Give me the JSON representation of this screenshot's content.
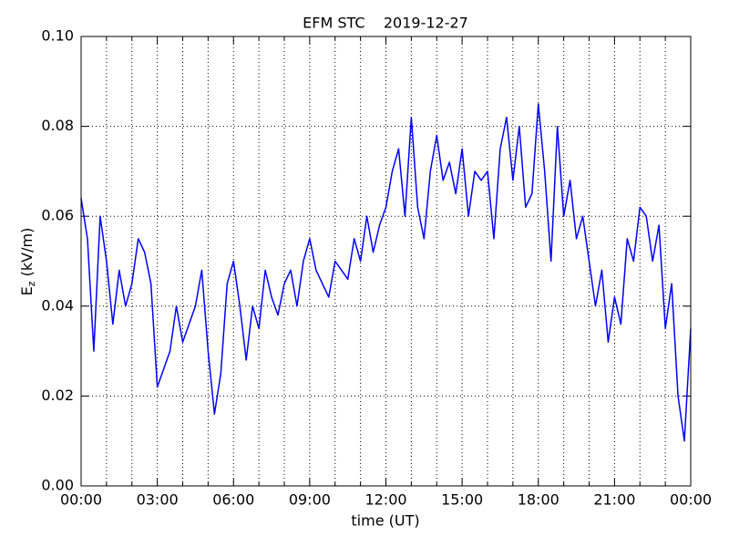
{
  "chart_data": {
    "type": "line",
    "title": "EFM STC    2019-12-27",
    "xlabel": "time (UT)",
    "ylabel": {
      "base": "E",
      "sub": "z",
      "rest": " (kV/m)"
    },
    "x": [
      0,
      0.25,
      0.5,
      0.75,
      1,
      1.25,
      1.5,
      1.75,
      2,
      2.25,
      2.5,
      2.75,
      3,
      3.25,
      3.5,
      3.75,
      4,
      4.25,
      4.5,
      4.75,
      5,
      5.25,
      5.5,
      5.75,
      6,
      6.25,
      6.5,
      6.75,
      7,
      7.25,
      7.5,
      7.75,
      8,
      8.25,
      8.5,
      8.75,
      9,
      9.25,
      9.5,
      9.75,
      10,
      10.25,
      10.5,
      10.75,
      11,
      11.25,
      11.5,
      11.75,
      12,
      12.25,
      12.5,
      12.75,
      13,
      13.25,
      13.5,
      13.75,
      14,
      14.25,
      14.5,
      14.75,
      15,
      15.25,
      15.5,
      15.75,
      16,
      16.25,
      16.5,
      16.75,
      17,
      17.25,
      17.5,
      17.75,
      18,
      18.25,
      18.5,
      18.75,
      19,
      19.25,
      19.5,
      19.75,
      20,
      20.25,
      20.5,
      20.75,
      21,
      21.25,
      21.5,
      21.75,
      22,
      22.25,
      22.5,
      22.75,
      23,
      23.25,
      23.5,
      23.75,
      24
    ],
    "series": [
      {
        "name": "Ez",
        "color": "#0000ff",
        "values": [
          0.064,
          0.055,
          0.03,
          0.06,
          0.05,
          0.036,
          0.048,
          0.04,
          0.045,
          0.055,
          0.052,
          0.045,
          0.022,
          0.026,
          0.03,
          0.04,
          0.032,
          0.036,
          0.04,
          0.048,
          0.03,
          0.016,
          0.025,
          0.045,
          0.05,
          0.04,
          0.028,
          0.04,
          0.035,
          0.048,
          0.042,
          0.038,
          0.045,
          0.048,
          0.04,
          0.05,
          0.055,
          0.048,
          0.045,
          0.042,
          0.05,
          0.048,
          0.046,
          0.055,
          0.05,
          0.06,
          0.052,
          0.058,
          0.062,
          0.07,
          0.075,
          0.06,
          0.082,
          0.062,
          0.055,
          0.07,
          0.078,
          0.068,
          0.072,
          0.065,
          0.075,
          0.06,
          0.07,
          0.068,
          0.07,
          0.055,
          0.075,
          0.082,
          0.068,
          0.08,
          0.062,
          0.065,
          0.085,
          0.07,
          0.05,
          0.08,
          0.06,
          0.068,
          0.055,
          0.06,
          0.05,
          0.04,
          0.048,
          0.032,
          0.042,
          0.036,
          0.055,
          0.05,
          0.062,
          0.06,
          0.05,
          0.058,
          0.035,
          0.045,
          0.02,
          0.01,
          0.035
        ]
      }
    ],
    "xlim": [
      0,
      24
    ],
    "xticks": [
      {
        "value": 0,
        "label": "00:00"
      },
      {
        "value": 3,
        "label": "03:00"
      },
      {
        "value": 6,
        "label": "06:00"
      },
      {
        "value": 9,
        "label": "09:00"
      },
      {
        "value": 12,
        "label": "12:00"
      },
      {
        "value": 15,
        "label": "15:00"
      },
      {
        "value": 18,
        "label": "18:00"
      },
      {
        "value": 21,
        "label": "21:00"
      },
      {
        "value": 24,
        "label": "00:00"
      }
    ],
    "xminorticks": [
      1,
      2,
      4,
      5,
      7,
      8,
      10,
      11,
      13,
      14,
      16,
      17,
      19,
      20,
      22,
      23
    ],
    "ylim": [
      0,
      0.1
    ],
    "yticks": [
      {
        "value": 0,
        "label": "0.00"
      },
      {
        "value": 0.02,
        "label": "0.02"
      },
      {
        "value": 0.04,
        "label": "0.04"
      },
      {
        "value": 0.06,
        "label": "0.06"
      },
      {
        "value": 0.08,
        "label": "0.08"
      },
      {
        "value": 0.1,
        "label": "0.10"
      }
    ],
    "grid": true
  }
}
